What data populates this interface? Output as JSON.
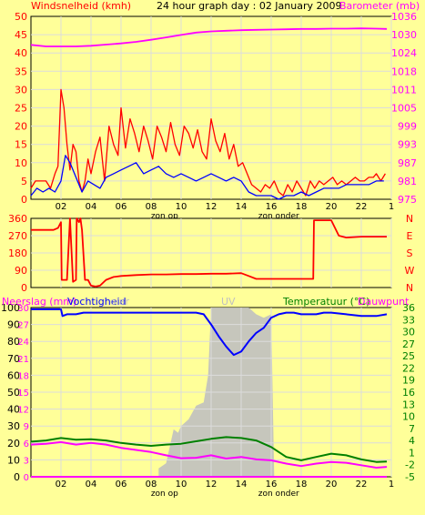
{
  "header": {
    "left_label": "Windsnelheid (kmh)",
    "title": "24 hour graph day : 02 January 2009",
    "right_label": "Barometer (mb)"
  },
  "colors": {
    "background": "#ffff99",
    "plot_bg": "#ffff99",
    "grid": "#dcdcdc",
    "wind_speed": "#ff0000",
    "wind_avg": "#0000ff",
    "barometer": "#ff00ff",
    "wind_dir": "#ff0000",
    "humidity": "#0000ff",
    "solar": "#c0c0c0",
    "temperature": "#008000",
    "dewpoint": "#ff00ff",
    "rain": "#ff00ff",
    "uv_label": "#c0c0c0"
  },
  "chart_data": [
    {
      "type": "line",
      "panel": "wind-barometer",
      "x_ticks": [
        "02",
        "04",
        "06",
        "08",
        "10",
        "12",
        "14",
        "16",
        "18",
        "20",
        "22",
        "1"
      ],
      "x_annotations": [
        "zon op",
        "zon onder"
      ],
      "y_left": {
        "label": "Windsnelheid (kmh)",
        "ticks": [
          "0",
          "5",
          "10",
          "15",
          "20",
          "25",
          "30",
          "35",
          "40",
          "45",
          "50"
        ],
        "range": [
          0,
          50
        ]
      },
      "y_right": {
        "label": "Barometer (mb)",
        "ticks": [
          "975",
          "981",
          "987",
          "993",
          "999",
          "1005",
          "1011",
          "1018",
          "1024",
          "1030",
          "1036"
        ],
        "range": [
          975,
          1036
        ]
      },
      "series": [
        {
          "name": "Windsnelheid (kmh)",
          "axis": "left",
          "color": "#ff0000",
          "x": [
            0,
            0.3,
            0.6,
            1,
            1.3,
            1.6,
            1.8,
            2,
            2.2,
            2.4,
            2.6,
            2.8,
            3,
            3.2,
            3.4,
            3.6,
            3.8,
            4,
            4.3,
            4.6,
            4.9,
            5.2,
            5.5,
            5.8,
            6,
            6.3,
            6.6,
            6.9,
            7.2,
            7.5,
            7.8,
            8.1,
            8.4,
            8.7,
            9,
            9.3,
            9.6,
            9.9,
            10.2,
            10.5,
            10.8,
            11.1,
            11.4,
            11.7,
            12,
            12.3,
            12.6,
            12.9,
            13.2,
            13.5,
            13.8,
            14.1,
            14.4,
            14.7,
            15,
            15.3,
            15.6,
            15.9,
            16.2,
            16.5,
            16.8,
            17.1,
            17.4,
            17.7,
            18,
            18.3,
            18.6,
            18.9,
            19.2,
            19.5,
            19.8,
            20.1,
            20.4,
            20.7,
            21,
            21.3,
            21.6,
            21.9,
            22.2,
            22.5,
            22.8,
            23,
            23.3,
            23.6
          ],
          "y": [
            3,
            5,
            5,
            5,
            3,
            7,
            9,
            30,
            25,
            15,
            8,
            15,
            13,
            5,
            2,
            5,
            11,
            7,
            13,
            17,
            5,
            20,
            15,
            12,
            25,
            14,
            22,
            18,
            13,
            20,
            16,
            11,
            20,
            17,
            13,
            21,
            15,
            12,
            20,
            18,
            14,
            19,
            13,
            11,
            22,
            16,
            13,
            18,
            11,
            15,
            9,
            10,
            7,
            4,
            3,
            2,
            4,
            3,
            5,
            2,
            1,
            4,
            2,
            5,
            3,
            1,
            5,
            3,
            5,
            4,
            5,
            6,
            4,
            5,
            4,
            5,
            6,
            5,
            5,
            6,
            6,
            7,
            5,
            7
          ]
        },
        {
          "name": "Gemiddelde wind",
          "axis": "left",
          "color": "#0000ff",
          "x": [
            0,
            0.4,
            0.8,
            1.2,
            1.6,
            2,
            2.3,
            2.6,
            3,
            3.4,
            3.8,
            4.2,
            4.6,
            5,
            5.5,
            6,
            6.5,
            7,
            7.5,
            8,
            8.5,
            9,
            9.5,
            10,
            10.5,
            11,
            11.5,
            12,
            12.5,
            13,
            13.5,
            14,
            14.5,
            15,
            15.5,
            16,
            16.5,
            17,
            17.5,
            18,
            18.5,
            19,
            19.5,
            20,
            20.5,
            21,
            21.5,
            22,
            22.5,
            23,
            23.5
          ],
          "y": [
            1,
            3,
            2,
            3,
            2,
            5,
            12,
            10,
            6,
            2,
            5,
            4,
            3,
            6,
            7,
            8,
            9,
            10,
            7,
            8,
            9,
            7,
            6,
            7,
            6,
            5,
            6,
            7,
            6,
            5,
            6,
            5,
            2,
            1,
            1,
            1,
            0,
            1,
            1,
            2,
            1,
            2,
            3,
            3,
            3,
            4,
            4,
            4,
            4,
            5,
            5
          ]
        },
        {
          "name": "Barometer (mb)",
          "axis": "right",
          "color": "#ff00ff",
          "x": [
            0,
            1,
            2,
            3,
            4,
            5,
            6,
            7,
            8,
            9,
            10,
            11,
            12,
            13,
            14,
            15,
            16,
            17,
            18,
            19,
            20,
            21,
            22,
            23,
            23.7
          ],
          "y": [
            1026.5,
            1026,
            1026,
            1026,
            1026.2,
            1026.6,
            1027,
            1027.5,
            1028.2,
            1029,
            1029.8,
            1030.6,
            1031,
            1031.2,
            1031.4,
            1031.5,
            1031.6,
            1031.7,
            1031.8,
            1031.8,
            1031.9,
            1031.9,
            1032,
            1031.9,
            1031.8
          ]
        }
      ]
    },
    {
      "type": "line",
      "panel": "wind-direction",
      "y_left": {
        "ticks": [
          "0",
          "90",
          "180",
          "270",
          "360"
        ],
        "range": [
          0,
          360
        ]
      },
      "y_right": {
        "ticks": [
          "N",
          "W",
          "S",
          "E",
          "N"
        ]
      },
      "series": [
        {
          "name": "Windrichting",
          "color": "#ff0000",
          "x": [
            0,
            0.5,
            1,
            1.5,
            1.8,
            2,
            2.05,
            2.2,
            2.4,
            2.6,
            2.8,
            3,
            3.05,
            3.2,
            3.3,
            3.4,
            3.6,
            3.8,
            4,
            4.3,
            4.6,
            5,
            5.5,
            6,
            7,
            8,
            9,
            10,
            11,
            12,
            13,
            14,
            14.5,
            15,
            16,
            17,
            18,
            18.8,
            18.85,
            19,
            19.5,
            20,
            20.5,
            21,
            22,
            23,
            23.7
          ],
          "y": [
            300,
            300,
            300,
            300,
            310,
            340,
            40,
            40,
            40,
            360,
            30,
            40,
            360,
            340,
            360,
            300,
            40,
            40,
            10,
            5,
            10,
            40,
            55,
            60,
            65,
            68,
            68,
            70,
            70,
            72,
            72,
            75,
            60,
            45,
            45,
            45,
            45,
            45,
            350,
            350,
            350,
            350,
            270,
            260,
            265,
            265,
            265
          ]
        }
      ]
    },
    {
      "type": "line",
      "panel": "humidity-temperature",
      "x_ticks": [
        "02",
        "04",
        "06",
        "08",
        "10",
        "12",
        "14",
        "16",
        "18",
        "20",
        "22",
        "1"
      ],
      "x_annotations": [
        "zon op",
        "zon onder"
      ],
      "y_left": {
        "label": "Neerslag (mm)",
        "ticks": [
          "0",
          "10",
          "20",
          "30",
          "40",
          "50",
          "60",
          "70",
          "80",
          "90",
          "100"
        ],
        "extra_ticks": [
          "0",
          "3",
          "6",
          "9",
          "12",
          "15",
          "18",
          "21",
          "24",
          "27",
          "30"
        ],
        "range": [
          0,
          100
        ]
      },
      "y_right": {
        "label": "Temperatuur (°C)",
        "ticks": [
          "-5",
          "-2",
          "1",
          "4",
          "7",
          "10",
          "13",
          "16",
          "19",
          "22",
          "25",
          "27",
          "30",
          "33",
          "36"
        ],
        "range": [
          -5,
          36
        ]
      },
      "legend": [
        "Vochtigheid",
        "olar",
        "UV",
        "Temperatuur (°C)",
        "Dauwpunt"
      ],
      "series": [
        {
          "name": "Vochtigheid",
          "axis": "left",
          "color": "#0000ff",
          "x": [
            0,
            1,
            2,
            2.1,
            2.4,
            3,
            3.5,
            4,
            5,
            6,
            7,
            8,
            9,
            10,
            11,
            11.5,
            12,
            12.5,
            13,
            13.5,
            14,
            14.5,
            15,
            15.5,
            16,
            16.5,
            17,
            17.5,
            18,
            19,
            19.5,
            20,
            21,
            22,
            23,
            23.7
          ],
          "y": [
            99,
            99,
            99,
            95,
            96,
            96,
            97,
            97,
            97,
            97,
            97,
            97,
            97,
            97,
            97,
            96,
            90,
            83,
            77,
            72,
            74,
            80,
            85,
            88,
            94,
            96,
            97,
            97,
            96,
            96,
            97,
            97,
            96,
            95,
            95,
            96
          ]
        },
        {
          "name": "Temperatuur (°C)",
          "axis": "right",
          "color": "#008000",
          "x": [
            0,
            1,
            2,
            3,
            4,
            5,
            6,
            7,
            8,
            9,
            10,
            11,
            12,
            13,
            14,
            15,
            16,
            17,
            18,
            19,
            20,
            21,
            22,
            23,
            23.7
          ],
          "y": [
            3.5,
            3.8,
            4.4,
            4.0,
            4.1,
            3.8,
            3.2,
            2.8,
            2.5,
            2.8,
            3.0,
            3.6,
            4.2,
            4.6,
            4.4,
            3.8,
            2.2,
            -0.2,
            -1.0,
            -0.2,
            0.6,
            0.2,
            -0.8,
            -1.4,
            -1.3
          ]
        },
        {
          "name": "Dauwpunt",
          "axis": "right",
          "color": "#ff00ff",
          "x": [
            0,
            1,
            2,
            3,
            4,
            5,
            6,
            7,
            8,
            9,
            10,
            11,
            12,
            13,
            14,
            15,
            16,
            17,
            18,
            19,
            20,
            21,
            22,
            23,
            23.7
          ],
          "y": [
            2.8,
            3.0,
            3.4,
            2.8,
            3.2,
            2.8,
            2.0,
            1.5,
            1.0,
            0.2,
            -0.5,
            -0.4,
            0.2,
            -0.6,
            -0.2,
            -0.8,
            -1.0,
            -1.8,
            -2.4,
            -1.8,
            -1.4,
            -1.6,
            -2.2,
            -2.8,
            -2.6
          ]
        },
        {
          "name": "Neerslag (mm)",
          "axis": "left",
          "color": "#ff00ff",
          "x": [
            0,
            23.7
          ],
          "y": [
            0,
            0
          ]
        }
      ],
      "solar": {
        "name": "olar",
        "color": "#c0c0c0",
        "x": [
          8.5,
          9,
          9.5,
          9.8,
          10,
          10.5,
          11,
          11.5,
          11.8,
          12,
          12.5,
          13,
          13.5,
          14,
          14.5,
          15,
          15.5,
          16,
          16.2
        ],
        "y": [
          5,
          8,
          28,
          26,
          30,
          34,
          42,
          44,
          60,
          100,
          100,
          100,
          100,
          100,
          100,
          96,
          94,
          96,
          0
        ]
      }
    }
  ]
}
